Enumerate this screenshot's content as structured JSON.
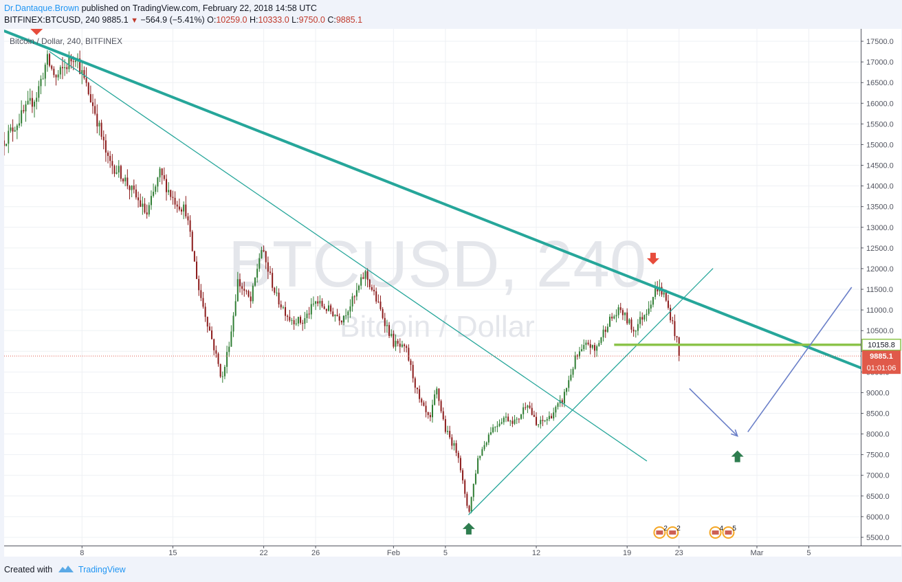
{
  "header": {
    "author": "Dr.Dantaque.Brown",
    "published": "published on TradingView.com, February 22, 2018 14:58 UTC",
    "symbol": "BITFINEX:BTCUSD, 240",
    "last": "9885.1",
    "change": "−564.9 (−5.41%)",
    "o_label": "O:",
    "o_value": "10259.0",
    "h_label": "H:",
    "h_value": "10333.0",
    "l_label": "L:",
    "l_value": "9750.0",
    "c_label": "C:",
    "c_value": "9885.1"
  },
  "footer": {
    "created": "Created with",
    "brand": "TradingView"
  },
  "chart_data": {
    "type": "candlestick",
    "title": "Bitcoin / Dollar, 240, BITFINEX",
    "watermark": "BTCUSD, 240",
    "watermark_sub": "Bitcoin / Dollar",
    "ylim": [
      5300,
      17800
    ],
    "yticks": [
      5500,
      6000,
      6500,
      7000,
      7500,
      8000,
      8500,
      9000,
      9500,
      10000,
      10500,
      11000,
      11500,
      12000,
      12500,
      13000,
      13500,
      14000,
      14500,
      15000,
      15500,
      16000,
      16500,
      17000,
      17500
    ],
    "xrange_days": [
      0,
      66
    ],
    "xticks": [
      {
        "label": "8",
        "day": 6
      },
      {
        "label": "15",
        "day": 13
      },
      {
        "label": "22",
        "day": 20
      },
      {
        "label": "26",
        "day": 24
      },
      {
        "label": "Feb",
        "day": 30
      },
      {
        "label": "5",
        "day": 34
      },
      {
        "label": "12",
        "day": 41
      },
      {
        "label": "19",
        "day": 48
      },
      {
        "label": "23",
        "day": 52
      },
      {
        "label": "Mar",
        "day": 58
      },
      {
        "label": "5",
        "day": 62
      }
    ],
    "day_origin_note": "x axis in days from Jan 2, 2018",
    "colors": {
      "up": "#2e7d32",
      "down": "#8b1a1a",
      "trend": "#26a69a",
      "level": "#8bc34a",
      "path": "#6a7fc8",
      "arrow_up": "#2e7d4f",
      "arrow_down": "#e74c3c",
      "price_tag": "#e05a4a"
    },
    "last_price": 9885.1,
    "last_price_label": "9885.1",
    "countdown": "01:01:06",
    "level_price": 10158.8,
    "level_label": "10158.8",
    "anchors": [
      {
        "day": 0,
        "price": 15100
      },
      {
        "day": 2.5,
        "price": 16200
      },
      {
        "day": 3.3,
        "price": 17050
      },
      {
        "day": 4,
        "price": 16600
      },
      {
        "day": 5.5,
        "price": 17200
      },
      {
        "day": 6,
        "price": 16700
      },
      {
        "day": 7,
        "price": 15800
      },
      {
        "day": 8,
        "price": 14600
      },
      {
        "day": 9,
        "price": 14300
      },
      {
        "day": 10,
        "price": 13800
      },
      {
        "day": 11,
        "price": 13300
      },
      {
        "day": 12,
        "price": 14300
      },
      {
        "day": 13,
        "price": 13700
      },
      {
        "day": 14,
        "price": 13400
      },
      {
        "day": 15,
        "price": 11500
      },
      {
        "day": 16,
        "price": 10300
      },
      {
        "day": 16.8,
        "price": 9300
      },
      {
        "day": 17.5,
        "price": 10500
      },
      {
        "day": 18,
        "price": 11700
      },
      {
        "day": 19,
        "price": 11200
      },
      {
        "day": 19.8,
        "price": 12500
      },
      {
        "day": 20.4,
        "price": 11900
      },
      {
        "day": 21,
        "price": 11300
      },
      {
        "day": 22,
        "price": 10800
      },
      {
        "day": 23,
        "price": 10700
      },
      {
        "day": 24,
        "price": 11200
      },
      {
        "day": 25,
        "price": 11000
      },
      {
        "day": 26,
        "price": 10800
      },
      {
        "day": 27,
        "price": 11300
      },
      {
        "day": 27.8,
        "price": 11900
      },
      {
        "day": 28.6,
        "price": 11300
      },
      {
        "day": 30,
        "price": 10200
      },
      {
        "day": 31,
        "price": 10000
      },
      {
        "day": 32,
        "price": 8800
      },
      {
        "day": 32.8,
        "price": 8300
      },
      {
        "day": 33.3,
        "price": 9100
      },
      {
        "day": 34,
        "price": 8100
      },
      {
        "day": 35,
        "price": 7500
      },
      {
        "day": 35.5,
        "price": 6500
      },
      {
        "day": 35.8,
        "price": 6100
      },
      {
        "day": 36.5,
        "price": 7400
      },
      {
        "day": 37.5,
        "price": 8100
      },
      {
        "day": 38.5,
        "price": 8400
      },
      {
        "day": 39.5,
        "price": 8300
      },
      {
        "day": 40.3,
        "price": 8800
      },
      {
        "day": 41,
        "price": 8200
      },
      {
        "day": 42,
        "price": 8400
      },
      {
        "day": 43,
        "price": 8800
      },
      {
        "day": 44,
        "price": 9800
      },
      {
        "day": 45,
        "price": 10200
      },
      {
        "day": 45.5,
        "price": 10000
      },
      {
        "day": 46.5,
        "price": 10700
      },
      {
        "day": 47.5,
        "price": 11000
      },
      {
        "day": 48.5,
        "price": 10500
      },
      {
        "day": 49.5,
        "price": 11000
      },
      {
        "day": 50.3,
        "price": 11550
      },
      {
        "day": 50.8,
        "price": 11400
      },
      {
        "day": 51.3,
        "price": 10900
      },
      {
        "day": 51.8,
        "price": 10300
      },
      {
        "day": 52,
        "price": 9885
      }
    ],
    "trendlines": [
      {
        "name": "resistance-main",
        "from": {
          "day": 0,
          "price": 17750
        },
        "to": {
          "day": 66,
          "price": 9600
        },
        "width": 4
      },
      {
        "name": "resistance-secondary",
        "from": {
          "day": 3.5,
          "price": 17250
        },
        "to": {
          "day": 49.5,
          "price": 7350
        },
        "width": 1.3
      },
      {
        "name": "support-line",
        "from": {
          "day": 35.8,
          "price": 6050
        },
        "to": {
          "day": 54.6,
          "price": 12000
        },
        "width": 1.3
      }
    ],
    "level_segment": {
      "from_day": 47,
      "to_day": 66
    },
    "projection_path": [
      {
        "day": 52.8,
        "price": 9100
      },
      {
        "day": 56.5,
        "price": 7950
      },
      {
        "day": 57.3,
        "price": 8050
      },
      {
        "day": 65.3,
        "price": 11550
      }
    ],
    "markers": [
      {
        "type": "arrow-down",
        "day": 2.5,
        "price": 17800
      },
      {
        "type": "arrow-up",
        "day": 35.8,
        "price": 5700
      },
      {
        "type": "arrow-down",
        "day": 50,
        "price": 12250
      },
      {
        "type": "arrow-up",
        "day": 56.5,
        "price": 7450
      }
    ],
    "event_badges": [
      {
        "day": 50.5,
        "count": "2"
      },
      {
        "day": 51.5,
        "count": "2"
      },
      {
        "day": 54.8,
        "count": "4"
      },
      {
        "day": 55.8,
        "count": "5"
      }
    ]
  }
}
